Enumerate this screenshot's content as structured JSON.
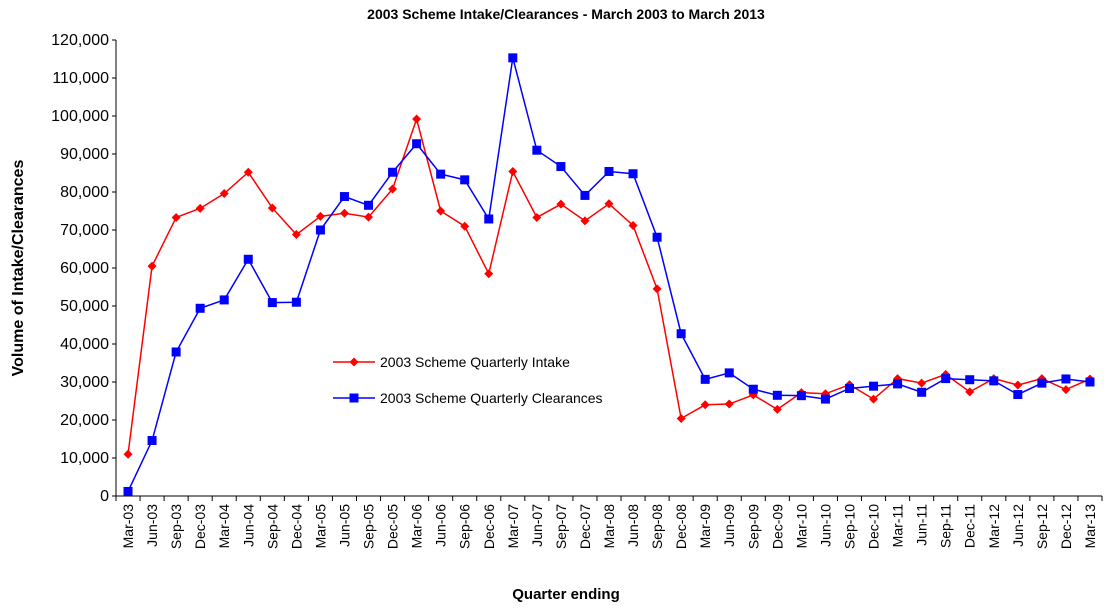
{
  "chart_data": {
    "type": "line",
    "title": "2003 Scheme Intake/Clearances - March 2003 to March 2013",
    "x_label": "Quarter ending",
    "y_label": "Volume of Intake/Clearances",
    "categories": [
      "Mar-03",
      "Jun-03",
      "Sep-03",
      "Dec-03",
      "Mar-04",
      "Jun-04",
      "Sep-04",
      "Dec-04",
      "Mar-05",
      "Jun-05",
      "Sep-05",
      "Dec-05",
      "Mar-06",
      "Jun-06",
      "Sep-06",
      "Dec-06",
      "Mar-07",
      "Jun-07",
      "Sep-07",
      "Dec-07",
      "Mar-08",
      "Jun-08",
      "Sep-08",
      "Dec-08",
      "Mar-09",
      "Jun-09",
      "Sep-09",
      "Dec-09",
      "Mar-10",
      "Jun-10",
      "Sep-10",
      "Dec-10",
      "Mar-11",
      "Jun-11",
      "Sep-11",
      "Dec-11",
      "Mar-12",
      "Jun-12",
      "Sep-12",
      "Dec-12",
      "Mar-13"
    ],
    "series": [
      {
        "name": "2003 Scheme Quarterly Intake",
        "color": "#ff0000",
        "marker": "diamond",
        "values": [
          11000,
          60500,
          73300,
          75700,
          79600,
          85200,
          75800,
          68800,
          73600,
          74400,
          73400,
          80800,
          99200,
          75000,
          71000,
          58500,
          85400,
          73300,
          76800,
          72400,
          76900,
          71200,
          54500,
          20400,
          24000,
          24200,
          26600,
          22800,
          27200,
          26900,
          29300,
          25500,
          30900,
          29700,
          32000,
          27400,
          30900,
          29200,
          30900,
          28000,
          30800
        ]
      },
      {
        "name": "2003 Scheme Quarterly Clearances",
        "color": "#0000ff",
        "marker": "square",
        "values": [
          1200,
          14600,
          37900,
          49400,
          51600,
          62300,
          50900,
          51000,
          70000,
          78800,
          76500,
          85200,
          92700,
          84700,
          83200,
          72900,
          115300,
          91000,
          86700,
          79100,
          85400,
          84800,
          68100,
          42700,
          30700,
          32400,
          28100,
          26500,
          26400,
          25500,
          28300,
          28900,
          29500,
          27300,
          30900,
          30600,
          30300,
          26700,
          29700,
          30800,
          30000
        ]
      }
    ],
    "ylim": [
      0,
      120000
    ],
    "yticks": [
      0,
      {
        "value": 10000,
        "label": "10,000"
      },
      {
        "value": 20000,
        "label": "20,000"
      },
      {
        "value": 30000,
        "label": "30,000"
      },
      {
        "value": 40000,
        "label": "40,000"
      },
      {
        "value": 50000,
        "label": "50,000"
      },
      {
        "value": 60000,
        "label": "60,000"
      },
      {
        "value": 70000,
        "label": "70,000"
      },
      {
        "value": 80000,
        "label": "80,000"
      },
      {
        "value": 90000,
        "label": "90,000"
      },
      {
        "value": 100000,
        "label": "100,000"
      },
      {
        "value": 110000,
        "label": "110,000"
      },
      {
        "value": 120000,
        "label": "120,000"
      }
    ],
    "grid": false
  }
}
